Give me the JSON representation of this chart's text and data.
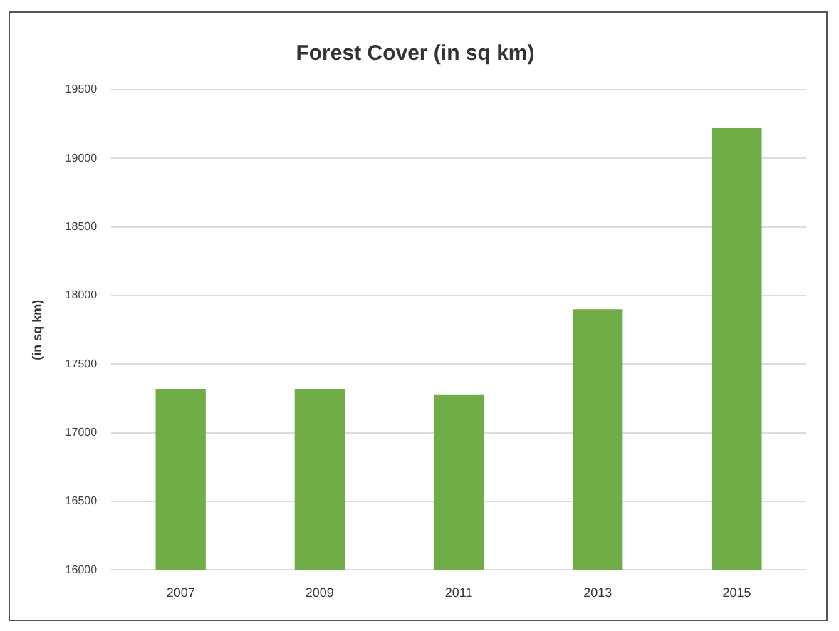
{
  "chart_data": {
    "type": "bar",
    "title": "Forest Cover (in sq km)",
    "ylabel": "(in sq km)",
    "categories": [
      "2007",
      "2009",
      "2011",
      "2013",
      "2015"
    ],
    "values": [
      17320,
      17320,
      17280,
      17900,
      19220
    ],
    "color": "#70ad47",
    "ylim": [
      16000,
      19500
    ],
    "yticks": [
      16000,
      16500,
      17000,
      17500,
      18000,
      18500,
      19000,
      19500
    ],
    "grid": "y",
    "legend": false
  }
}
